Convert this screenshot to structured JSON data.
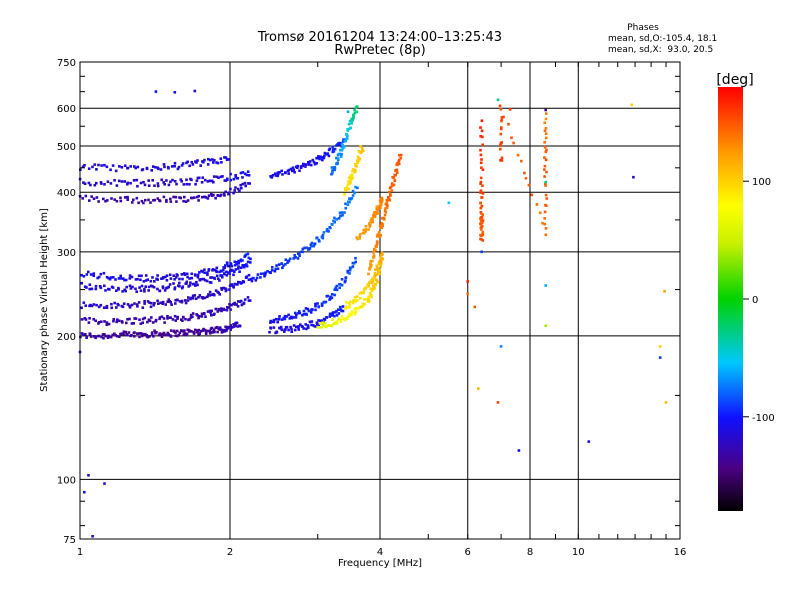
{
  "header": {
    "title_line1": "Tromsø 20161204 13:24:00–13:25:43",
    "title_line2": "RwPretec (8p)",
    "phase_title": "Phases",
    "phase_line1": "mean, sd,O:-105.4, 18.1",
    "phase_line2": "mean, sd,X:  93.0, 20.5"
  },
  "colorbar": {
    "label": "[deg]",
    "ticks": [
      "100",
      "0",
      "-100"
    ],
    "tick_values": [
      100,
      0,
      -100
    ],
    "range": [
      -180,
      180
    ]
  },
  "chart_data": {
    "type": "scatter",
    "xlabel": "Frequency [MHz]",
    "ylabel": "Stationary phase Virtual Height [km]",
    "xscale": "log",
    "yscale": "log",
    "xlim": [
      1,
      16
    ],
    "ylim": [
      75,
      750
    ],
    "x_ticks": [
      1,
      2,
      4,
      6,
      8,
      10,
      16
    ],
    "x_tick_labels": [
      "1",
      "2",
      "4",
      "6",
      "8",
      "10",
      "16"
    ],
    "y_ticks": [
      75,
      100,
      200,
      300,
      400,
      500,
      600,
      750
    ],
    "y_tick_labels": [
      "75",
      "100",
      "200",
      "300",
      "400",
      "500",
      "600",
      "750"
    ],
    "grid": true,
    "traces": [
      {
        "mode": "O",
        "x": [
          1.0,
          1.1,
          1.2,
          1.3,
          1.4,
          1.5,
          1.6,
          1.7,
          1.8,
          1.9,
          2.0,
          2.1
        ],
        "y": [
          200,
          200,
          201,
          201,
          202,
          202,
          203,
          204,
          205,
          206,
          208,
          212
        ],
        "phase": [
          -130,
          -132,
          -135,
          -137,
          -138,
          -140,
          -140,
          -138,
          -135,
          -130,
          -125,
          -120
        ]
      },
      {
        "mode": "O",
        "x": [
          1.0,
          1.15,
          1.3,
          1.45,
          1.6,
          1.75,
          1.9,
          2.05,
          2.2
        ],
        "y": [
          215,
          214,
          215,
          216,
          218,
          221,
          226,
          232,
          240
        ],
        "phase": [
          -125,
          -128,
          -130,
          -132,
          -132,
          -130,
          -126,
          -120,
          -115
        ]
      },
      {
        "mode": "O",
        "x": [
          1.0,
          1.15,
          1.3,
          1.45,
          1.6,
          1.75,
          1.9,
          2.05,
          2.2
        ],
        "y": [
          232,
          231,
          232,
          234,
          237,
          241,
          247,
          255,
          265
        ],
        "phase": [
          -118,
          -120,
          -122,
          -124,
          -124,
          -122,
          -118,
          -112,
          -106
        ]
      },
      {
        "mode": "O",
        "x": [
          1.0,
          1.15,
          1.3,
          1.45,
          1.6,
          1.75,
          1.9,
          2.05,
          2.2
        ],
        "y": [
          255,
          252,
          251,
          252,
          255,
          259,
          265,
          273,
          284
        ],
        "phase": [
          -110,
          -112,
          -115,
          -116,
          -116,
          -114,
          -110,
          -105,
          -100
        ]
      },
      {
        "mode": "O",
        "x": [
          1.0,
          1.15,
          1.3,
          1.45,
          1.6,
          1.75,
          1.9,
          2.05,
          2.2
        ],
        "y": [
          270,
          266,
          264,
          264,
          266,
          270,
          276,
          284,
          295
        ],
        "phase": [
          -105,
          -107,
          -110,
          -112,
          -112,
          -110,
          -106,
          -100,
          -95
        ]
      },
      {
        "mode": "O",
        "x": [
          1.0,
          1.2,
          1.4,
          1.6,
          1.8,
          2.0,
          2.2
        ],
        "y": [
          388,
          386,
          385,
          386,
          390,
          402,
          415
        ],
        "phase": [
          -128,
          -130,
          -132,
          -130,
          -126,
          -120,
          -115
        ]
      },
      {
        "mode": "O",
        "x": [
          1.0,
          1.2,
          1.4,
          1.6,
          1.8,
          2.0,
          2.2
        ],
        "y": [
          420,
          418,
          418,
          420,
          424,
          430,
          438
        ],
        "phase": [
          -118,
          -120,
          -122,
          -120,
          -116,
          -110,
          -105
        ]
      },
      {
        "mode": "O",
        "x": [
          1.0,
          1.2,
          1.4,
          1.6,
          1.8,
          2.0
        ],
        "y": [
          452,
          448,
          450,
          455,
          462,
          470
        ],
        "phase": [
          -112,
          -114,
          -116,
          -114,
          -110,
          -105
        ]
      },
      {
        "mode": "O",
        "x": [
          2.4,
          2.6,
          2.8,
          3.0,
          3.2,
          3.4
        ],
        "y": [
          430,
          440,
          452,
          468,
          488,
          512
        ],
        "phase": [
          -105,
          -108,
          -110,
          -105,
          -98,
          -90
        ]
      },
      {
        "mode": "O",
        "x": [
          2.4,
          2.6,
          2.8,
          3.0,
          3.2,
          3.4
        ],
        "y": [
          205,
          206,
          209,
          213,
          220,
          230
        ],
        "phase": [
          -115,
          -112,
          -108,
          -104,
          -100,
          -95
        ]
      },
      {
        "mode": "O",
        "x": [
          2.4,
          2.6,
          2.8,
          3.0,
          3.2,
          3.4,
          3.6
        ],
        "y": [
          215,
          218,
          223,
          231,
          243,
          262,
          295
        ],
        "phase": [
          -105,
          -102,
          -98,
          -95,
          -92,
          -88,
          -85
        ]
      },
      {
        "mode": "O",
        "x": [
          2.2,
          2.4,
          2.6,
          2.8,
          3.0,
          3.2,
          3.4,
          3.6
        ],
        "y": [
          260,
          272,
          285,
          300,
          318,
          340,
          370,
          410
        ],
        "phase": [
          -100,
          -96,
          -92,
          -88,
          -84,
          -80,
          -76,
          -72
        ]
      },
      {
        "mode": "O",
        "x": [
          3.2,
          3.3,
          3.4,
          3.5,
          3.6
        ],
        "y": [
          440,
          470,
          510,
          560,
          600
        ],
        "phase": [
          -80,
          -70,
          -60,
          -40,
          -20
        ]
      },
      {
        "mode": "X",
        "x": [
          3.0,
          3.2,
          3.4,
          3.6,
          3.8,
          3.9,
          4.0
        ],
        "y": [
          210,
          213,
          218,
          226,
          240,
          255,
          275
        ],
        "phase": [
          60,
          65,
          75,
          85,
          95,
          100,
          110
        ]
      },
      {
        "mode": "X",
        "x": [
          3.4,
          3.6,
          3.8,
          3.9,
          4.0,
          4.05
        ],
        "y": [
          230,
          240,
          255,
          268,
          285,
          300
        ],
        "phase": [
          85,
          92,
          100,
          106,
          112,
          118
        ]
      },
      {
        "mode": "X",
        "x": [
          3.6,
          3.8,
          3.9,
          4.0,
          4.05
        ],
        "y": [
          320,
          340,
          355,
          375,
          390
        ],
        "phase": [
          120,
          125,
          128,
          132,
          135
        ]
      },
      {
        "mode": "X",
        "x": [
          3.8,
          3.9,
          4.0,
          4.1,
          4.2,
          4.3,
          4.4
        ],
        "y": [
          270,
          300,
          330,
          365,
          400,
          440,
          480
        ],
        "phase": [
          125,
          130,
          135,
          140,
          145,
          148,
          150
        ]
      },
      {
        "mode": "X",
        "x": [
          3.4,
          3.5,
          3.6,
          3.7
        ],
        "y": [
          400,
          430,
          465,
          500
        ],
        "phase": [
          90,
          95,
          100,
          105
        ]
      },
      {
        "mode": "X",
        "x": [
          6.4,
          6.4,
          6.4,
          6.4,
          6.4
        ],
        "y": [
          320,
          340,
          360,
          420,
          580
        ],
        "phase": [
          150,
          145,
          150,
          160,
          170
        ]
      },
      {
        "mode": "X",
        "x": [
          7.0,
          7.0,
          8.6,
          8.6,
          8.6
        ],
        "y": [
          460,
          600,
          330,
          460,
          590
        ],
        "phase": [
          160,
          150,
          140,
          150,
          130
        ]
      }
    ],
    "scatter_points": [
      {
        "x": 1.42,
        "y": 650,
        "phase": -100
      },
      {
        "x": 1.55,
        "y": 648,
        "phase": -105
      },
      {
        "x": 1.7,
        "y": 652,
        "phase": -110
      },
      {
        "x": 3.45,
        "y": 590,
        "phase": -60
      },
      {
        "x": 8.6,
        "y": 595,
        "phase": -140
      },
      {
        "x": 1.02,
        "y": 94,
        "phase": -100
      },
      {
        "x": 1.04,
        "y": 102,
        "phase": -110
      },
      {
        "x": 1.06,
        "y": 76,
        "phase": -120
      },
      {
        "x": 1.12,
        "y": 98,
        "phase": -110
      },
      {
        "x": 1.0,
        "y": 185,
        "phase": -110
      },
      {
        "x": 6.0,
        "y": 260,
        "phase": 170
      },
      {
        "x": 6.2,
        "y": 230,
        "phase": 150
      },
      {
        "x": 6.0,
        "y": 245,
        "phase": 140
      },
      {
        "x": 6.4,
        "y": 300,
        "phase": -90
      },
      {
        "x": 7.0,
        "y": 190,
        "phase": -70
      },
      {
        "x": 6.3,
        "y": 155,
        "phase": 110
      },
      {
        "x": 6.9,
        "y": 145,
        "phase": 160
      },
      {
        "x": 7.6,
        "y": 115,
        "phase": -100
      },
      {
        "x": 8.6,
        "y": 255,
        "phase": -60
      },
      {
        "x": 8.6,
        "y": 210,
        "phase": 40
      },
      {
        "x": 6.9,
        "y": 625,
        "phase": -30
      },
      {
        "x": 7.3,
        "y": 597,
        "phase": 160
      },
      {
        "x": 8.6,
        "y": 420,
        "phase": -30
      },
      {
        "x": 10.5,
        "y": 120,
        "phase": -110
      },
      {
        "x": 12.8,
        "y": 610,
        "phase": 100
      },
      {
        "x": 12.9,
        "y": 430,
        "phase": -120
      },
      {
        "x": 14.6,
        "y": 180,
        "phase": -90
      },
      {
        "x": 14.9,
        "y": 248,
        "phase": 120
      },
      {
        "x": 15.0,
        "y": 145,
        "phase": 110
      },
      {
        "x": 14.6,
        "y": 190,
        "phase": 100
      },
      {
        "x": 5.5,
        "y": 380,
        "phase": -50
      }
    ]
  }
}
